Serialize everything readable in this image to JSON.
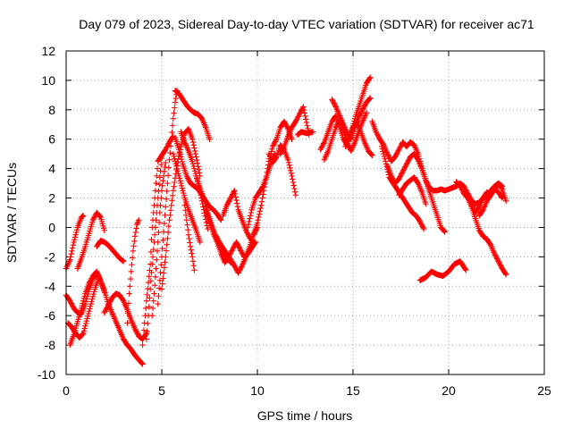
{
  "chart_data": {
    "type": "scatter",
    "title": "Day 079 of 2023, Sidereal Day-to-day VTEC variation (SDTVAR) for receiver ac71",
    "xlabel": "GPS time / hours",
    "ylabel": "SDTVAR / TECUs",
    "xlim": [
      0,
      25
    ],
    "ylim": [
      -10,
      12
    ],
    "xticks": [
      0,
      5,
      10,
      15,
      20,
      25
    ],
    "yticks": [
      -10,
      -8,
      -6,
      -4,
      -2,
      0,
      2,
      4,
      6,
      8,
      10,
      12
    ],
    "grid": true,
    "marker": "+",
    "color": "#ff0000",
    "series": [
      {
        "name": "s01",
        "x": [
          0.0,
          0.2,
          0.4,
          0.6,
          0.8,
          0.9
        ],
        "y": [
          -2.8,
          -2.2,
          -1.0,
          0.0,
          0.7,
          0.8
        ]
      },
      {
        "name": "s02",
        "x": [
          0.0,
          0.2,
          0.4,
          0.6,
          0.8,
          1.0,
          1.2,
          1.4,
          1.6,
          1.8,
          2.0,
          2.2,
          2.4,
          2.6,
          2.8,
          3.0,
          3.2,
          3.4,
          3.6,
          3.8,
          4.0
        ],
        "y": [
          -4.6,
          -5.0,
          -5.5,
          -5.8,
          -5.9,
          -5.2,
          -4.2,
          -3.5,
          -3.1,
          -3.6,
          -4.3,
          -5.2,
          -5.8,
          -6.4,
          -7.0,
          -7.6,
          -8.0,
          -8.3,
          -8.7,
          -9.0,
          -9.3
        ]
      },
      {
        "name": "s03",
        "x": [
          0.1,
          0.3,
          0.5,
          0.7,
          0.9,
          1.1,
          1.3,
          1.5,
          1.7
        ],
        "y": [
          -6.5,
          -6.8,
          -7.2,
          -7.5,
          -7.2,
          -6.2,
          -5.2,
          -4.2,
          -3.4
        ]
      },
      {
        "name": "s04",
        "x": [
          0.2,
          0.4,
          0.6,
          0.8,
          1.0,
          1.2,
          1.4,
          1.6,
          1.8,
          2.0
        ],
        "y": [
          -8.0,
          -7.3,
          -6.4,
          -5.5,
          -4.5,
          -3.8,
          -3.3,
          -3.0,
          -3.6,
          -4.4
        ]
      },
      {
        "name": "s05",
        "x": [
          0.6,
          0.8,
          1.0,
          1.2,
          1.4,
          1.6,
          1.8,
          2.0
        ],
        "y": [
          -2.8,
          -2.1,
          -1.3,
          -0.4,
          0.5,
          1.0,
          0.7,
          -0.2
        ]
      },
      {
        "name": "s06",
        "x": [
          1.6,
          1.8,
          2.0,
          2.2,
          2.4,
          2.6,
          2.8,
          3.0
        ],
        "y": [
          -1.3,
          -0.9,
          -1.0,
          -1.2,
          -1.5,
          -1.8,
          -2.1,
          -2.3
        ]
      },
      {
        "name": "s07",
        "x": [
          2.0,
          2.2,
          2.4,
          2.6,
          2.8,
          3.0,
          3.2,
          3.4,
          3.6,
          3.8,
          4.0,
          4.2
        ],
        "y": [
          -5.8,
          -5.3,
          -4.8,
          -4.5,
          -4.6,
          -5.0,
          -5.6,
          -6.3,
          -6.9,
          -7.4,
          -7.6,
          -7.2
        ]
      },
      {
        "name": "s08",
        "x": [
          3.2,
          3.3,
          3.4,
          3.5,
          3.6,
          3.7,
          3.8
        ],
        "y": [
          -6.5,
          -4.5,
          -3.0,
          -1.6,
          -0.6,
          0.2,
          0.5
        ]
      },
      {
        "name": "s09",
        "x": [
          4.0,
          4.2,
          4.4,
          4.5,
          4.6,
          4.7,
          4.8,
          5.0,
          5.2,
          5.4,
          5.6
        ],
        "y": [
          -8.0,
          -5.0,
          -2.5,
          0.0,
          1.5,
          3.0,
          4.5,
          4.9,
          5.3,
          5.8,
          6.2
        ]
      },
      {
        "name": "s10",
        "x": [
          4.2,
          4.3,
          4.4,
          4.5,
          4.6,
          4.7,
          4.8,
          4.9,
          5.0
        ],
        "y": [
          -7.6,
          -6.0,
          -4.2,
          -2.5,
          -1.0,
          0.5,
          2.0,
          3.4,
          4.7
        ]
      },
      {
        "name": "s11",
        "x": [
          4.5,
          4.6,
          4.7,
          4.8,
          4.9,
          5.0,
          5.1,
          5.2
        ],
        "y": [
          -6.0,
          -4.5,
          -2.8,
          -1.0,
          1.0,
          2.5,
          3.5,
          4.4
        ]
      },
      {
        "name": "s12",
        "x": [
          4.8,
          4.9,
          5.0,
          5.1,
          5.2,
          5.3,
          5.4,
          5.5,
          5.6,
          5.7,
          5.8
        ],
        "y": [
          -5.2,
          -3.6,
          -2.0,
          -0.3,
          1.4,
          3.0,
          4.6,
          6.0,
          7.4,
          8.5,
          9.3
        ]
      },
      {
        "name": "s13",
        "x": [
          5.0,
          5.2,
          5.4,
          5.6,
          5.8,
          6.0,
          6.2,
          6.4,
          6.6,
          6.8,
          7.0
        ],
        "y": [
          -4.2,
          -2.0,
          0.5,
          2.5,
          4.2,
          5.5,
          6.4,
          6.7,
          6.0,
          4.8,
          3.5
        ]
      },
      {
        "name": "s14",
        "x": [
          5.7,
          5.9,
          6.1,
          6.3,
          6.5,
          6.7,
          6.9,
          7.1,
          7.3,
          7.5
        ],
        "y": [
          9.3,
          9.1,
          8.7,
          8.3,
          8.0,
          7.8,
          7.7,
          7.4,
          6.8,
          6.0
        ]
      },
      {
        "name": "s15",
        "x": [
          5.7,
          5.9,
          6.1,
          6.3,
          6.5,
          6.7,
          6.9,
          7.1,
          7.3,
          7.5,
          7.7,
          7.9,
          8.1
        ],
        "y": [
          6.1,
          5.3,
          4.3,
          3.5,
          3.0,
          2.8,
          2.6,
          2.2,
          1.8,
          1.4,
          1.2,
          0.9,
          0.5
        ]
      },
      {
        "name": "s16",
        "x": [
          5.6,
          5.8,
          6.0,
          6.2,
          6.4,
          6.6,
          6.8,
          7.0
        ],
        "y": [
          5.0,
          4.0,
          3.0,
          2.0,
          1.2,
          0.5,
          -0.2,
          -1.0
        ]
      },
      {
        "name": "s17",
        "x": [
          6.0,
          6.2,
          6.4,
          6.6,
          6.8,
          7.0,
          7.2,
          7.4
        ],
        "y": [
          6.5,
          5.8,
          5.2,
          4.5,
          3.5,
          2.4,
          1.2,
          -0.1
        ]
      },
      {
        "name": "s18",
        "x": [
          6.2,
          6.3,
          6.4,
          6.5,
          6.6,
          6.7
        ],
        "y": [
          1.5,
          0.5,
          -0.5,
          -1.3,
          -2.0,
          -2.9
        ]
      },
      {
        "name": "s19",
        "x": [
          6.8,
          7.0,
          7.2,
          7.4,
          7.6,
          7.8,
          8.0,
          8.2,
          8.4,
          8.6
        ],
        "y": [
          3.5,
          2.7,
          1.9,
          1.0,
          0.2,
          -0.5,
          -1.2,
          -1.7,
          -2.0,
          -2.4
        ]
      },
      {
        "name": "s20",
        "x": [
          7.3,
          7.5,
          7.7,
          7.9,
          8.1,
          8.3,
          8.5,
          8.7,
          8.9,
          9.1,
          9.3,
          9.5,
          9.7,
          9.9
        ],
        "y": [
          1.2,
          0.4,
          -0.4,
          -1.0,
          -1.8,
          -2.4,
          -2.0,
          -1.5,
          -1.0,
          -1.5,
          -2.0,
          -1.8,
          -1.4,
          -1.0
        ]
      },
      {
        "name": "s21",
        "x": [
          7.8,
          8.0,
          8.2,
          8.4,
          8.6,
          8.8,
          9.0,
          9.2,
          9.4,
          9.6,
          9.8,
          10.0
        ],
        "y": [
          -0.5,
          -1.0,
          -1.4,
          -1.8,
          -2.2,
          -2.6,
          -3.1,
          -2.6,
          -2.0,
          -1.3,
          -0.5,
          0.0
        ]
      },
      {
        "name": "s22",
        "x": [
          8.2,
          8.4,
          8.6,
          8.8,
          9.0,
          9.2,
          9.4,
          9.6,
          9.8
        ],
        "y": [
          0.8,
          1.5,
          2.0,
          2.5,
          1.2,
          0.5,
          -0.2,
          -0.7,
          -1.0
        ]
      },
      {
        "name": "s23",
        "x": [
          9.5,
          9.7,
          9.9,
          10.1,
          10.3,
          10.5,
          10.7,
          10.9
        ],
        "y": [
          0.0,
          1.2,
          2.0,
          2.4,
          2.8,
          3.5,
          4.3,
          5.0
        ]
      },
      {
        "name": "s24",
        "x": [
          9.8,
          10.0,
          10.2,
          10.4,
          10.6,
          10.8,
          11.0,
          11.2,
          11.4,
          11.6,
          11.8
        ],
        "y": [
          -0.5,
          0.3,
          1.5,
          3.0,
          4.5,
          5.5,
          6.0,
          6.8,
          7.2,
          6.7,
          6.0
        ]
      },
      {
        "name": "s25",
        "x": [
          10.6,
          10.8,
          11.0,
          11.2,
          11.4,
          11.6,
          11.8,
          12.0
        ],
        "y": [
          5.0,
          4.4,
          4.8,
          5.6,
          5.3,
          4.6,
          3.5,
          2.2
        ]
      },
      {
        "name": "s26",
        "x": [
          11.2,
          11.4,
          11.6,
          11.8,
          12.0,
          12.2,
          12.4,
          12.7
        ],
        "y": [
          5.0,
          5.5,
          6.2,
          6.8,
          7.2,
          7.7,
          8.2,
          6.3
        ]
      },
      {
        "name": "s27",
        "x": [
          12.1,
          12.3,
          12.6,
          12.9
        ],
        "y": [
          6.3,
          6.5,
          6.4,
          6.5
        ]
      },
      {
        "name": "s28",
        "x": [
          13.3,
          13.5,
          13.7,
          13.9,
          14.1,
          14.3,
          14.5,
          14.7,
          14.9,
          15.1,
          15.3,
          15.5,
          15.7,
          15.9
        ],
        "y": [
          5.3,
          5.8,
          6.5,
          7.2,
          7.6,
          6.8,
          6.0,
          5.6,
          6.4,
          7.4,
          8.2,
          9.0,
          9.8,
          10.2
        ]
      },
      {
        "name": "s29",
        "x": [
          13.5,
          13.7,
          13.9,
          14.1,
          14.3,
          14.5,
          14.7,
          14.9,
          15.1,
          15.3,
          15.5,
          15.7
        ],
        "y": [
          4.6,
          5.2,
          6.0,
          6.8,
          7.3,
          6.6,
          5.7,
          5.2,
          5.8,
          6.5,
          7.2,
          7.8
        ]
      },
      {
        "name": "s30",
        "x": [
          13.9,
          14.1,
          14.3,
          14.5,
          14.7,
          14.9,
          15.1,
          15.3,
          15.5,
          15.7,
          15.9
        ],
        "y": [
          8.7,
          8.2,
          7.6,
          7.0,
          6.4,
          6.0,
          6.8,
          7.5,
          8.0,
          8.5,
          8.8
        ]
      },
      {
        "name": "s31",
        "x": [
          14.6,
          14.8,
          15.0,
          15.2,
          15.4,
          15.6,
          15.8,
          16.0
        ],
        "y": [
          5.5,
          6.2,
          6.8,
          7.2,
          6.5,
          5.8,
          5.2,
          4.9
        ]
      },
      {
        "name": "s32",
        "x": [
          16.0,
          16.2,
          16.4,
          16.6,
          16.8,
          17.0,
          17.2,
          17.4,
          17.6,
          17.8,
          18.0,
          18.2,
          18.4,
          18.6,
          18.8,
          19.0,
          19.2,
          19.4,
          19.6,
          19.8,
          20.0,
          20.2,
          20.4,
          20.6,
          20.8,
          21.0,
          21.2,
          21.4,
          21.6,
          21.8,
          22.0,
          22.2,
          22.4,
          22.6,
          22.8
        ],
        "y": [
          7.2,
          6.5,
          6.0,
          5.6,
          5.0,
          4.5,
          4.8,
          5.3,
          5.8,
          5.5,
          5.8,
          5.6,
          5.0,
          4.0,
          3.2,
          2.7,
          2.5,
          2.5,
          2.6,
          2.5,
          2.6,
          2.7,
          2.8,
          3.0,
          2.8,
          2.3,
          1.8,
          1.6,
          1.7,
          2.0,
          2.2,
          2.5,
          2.8,
          3.0,
          2.8
        ]
      },
      {
        "name": "s33",
        "x": [
          16.5,
          16.7,
          16.9,
          17.1,
          17.3,
          17.5,
          17.7,
          17.9,
          18.1,
          18.3,
          18.5,
          18.7
        ],
        "y": [
          5.5,
          4.5,
          3.4,
          3.0,
          2.6,
          2.2,
          1.8,
          1.4,
          1.0,
          0.8,
          0.4,
          -0.1
        ]
      },
      {
        "name": "s34",
        "x": [
          16.8,
          17.0,
          17.2,
          17.4,
          17.6,
          17.8,
          18.0,
          18.2,
          18.4,
          18.6,
          18.8,
          19.0,
          19.2,
          19.4,
          19.6,
          19.8
        ],
        "y": [
          4.2,
          3.5,
          3.0,
          3.3,
          3.8,
          4.3,
          4.8,
          5.0,
          4.6,
          4.0,
          3.2,
          2.4,
          1.6,
          0.8,
          0.0,
          -0.3
        ]
      },
      {
        "name": "s35",
        "x": [
          17.4,
          17.6,
          17.8,
          18.0,
          18.2,
          18.4,
          18.6,
          18.8
        ],
        "y": [
          2.2,
          2.6,
          3.0,
          3.2,
          3.4,
          3.0,
          2.4,
          1.6
        ]
      },
      {
        "name": "s36",
        "x": [
          18.5,
          18.8,
          19.1,
          19.4,
          19.7,
          20.0,
          20.3,
          20.6,
          20.9
        ],
        "y": [
          -3.6,
          -3.4,
          -3.0,
          -3.2,
          -3.3,
          -3.0,
          -2.5,
          -2.3,
          -2.9
        ]
      },
      {
        "name": "s37",
        "x": [
          20.4,
          20.6,
          20.8,
          21.0,
          21.2,
          21.4,
          21.6,
          21.8,
          22.0,
          22.2,
          22.4,
          22.6,
          22.8,
          23.0
        ],
        "y": [
          3.1,
          2.8,
          2.3,
          2.0,
          1.4,
          0.6,
          -0.2,
          -0.6,
          -0.8,
          -1.2,
          -1.8,
          -2.3,
          -2.8,
          -3.2
        ]
      },
      {
        "name": "s38",
        "x": [
          21.0,
          21.2,
          21.4,
          21.6,
          21.8,
          22.0,
          22.2,
          22.4,
          22.6,
          22.8
        ],
        "y": [
          2.2,
          1.6,
          1.0,
          1.4,
          2.0,
          2.4,
          2.2,
          2.6,
          2.4,
          2.0
        ]
      },
      {
        "name": "s39",
        "x": [
          21.6,
          21.8,
          22.0,
          22.2,
          22.4,
          22.6,
          22.8,
          23.0
        ],
        "y": [
          0.8,
          1.2,
          1.8,
          2.2,
          2.6,
          3.0,
          2.6,
          1.8
        ]
      }
    ]
  }
}
